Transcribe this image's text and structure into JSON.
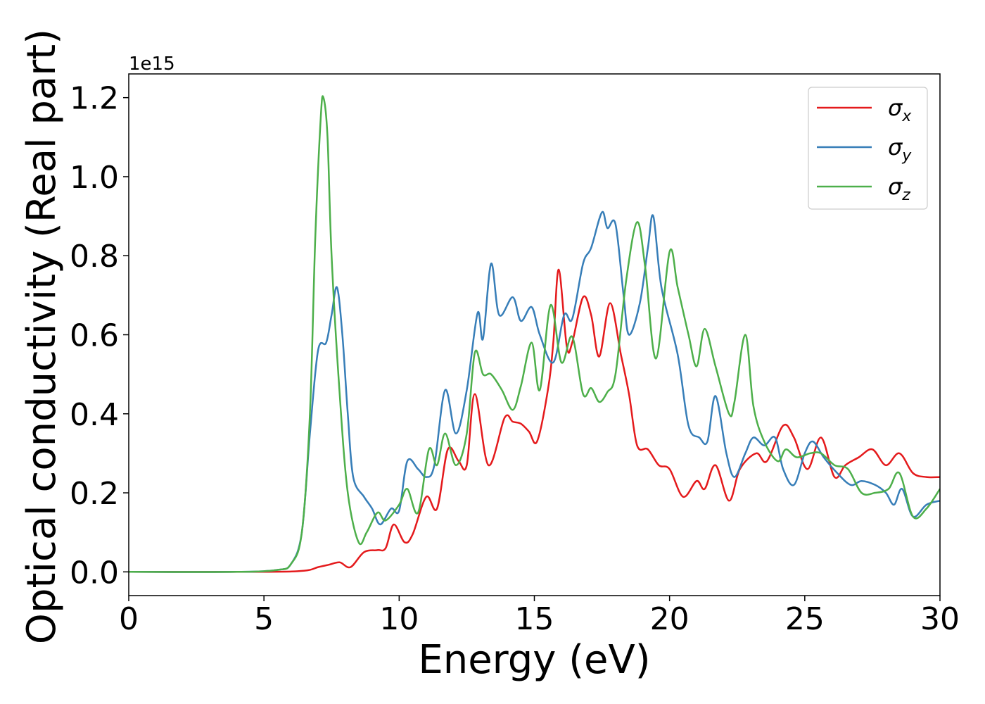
{
  "chart_data": {
    "type": "line",
    "xlabel": "Energy (eV)",
    "ylabel": "Optical conductivity (Real part)",
    "y_offset_text": "1e15",
    "xlim": [
      0,
      30
    ],
    "ylim": [
      -0.06,
      1.26
    ],
    "x_ticks": [
      0,
      5,
      10,
      15,
      20,
      25,
      30
    ],
    "x_tick_labels": [
      "0",
      "5",
      "10",
      "15",
      "20",
      "25",
      "30"
    ],
    "y_ticks": [
      0.0,
      0.2,
      0.4,
      0.6,
      0.8,
      1.0,
      1.2
    ],
    "y_tick_labels": [
      "0.0",
      "0.2",
      "0.4",
      "0.6",
      "0.8",
      "1.0",
      "1.2"
    ],
    "grid": false,
    "legend_position": "top-right",
    "series": [
      {
        "name": "σx",
        "symbol": "σ",
        "subscript": "x",
        "color": "#e41a1c",
        "points": [
          [
            0,
            0
          ],
          [
            5,
            0
          ],
          [
            6.5,
            0.003
          ],
          [
            7,
            0.012
          ],
          [
            7.4,
            0.018
          ],
          [
            7.8,
            0.024
          ],
          [
            8.2,
            0.012
          ],
          [
            8.7,
            0.05
          ],
          [
            9.2,
            0.055
          ],
          [
            9.5,
            0.06
          ],
          [
            9.8,
            0.12
          ],
          [
            10.2,
            0.075
          ],
          [
            10.5,
            0.095
          ],
          [
            11,
            0.19
          ],
          [
            11.4,
            0.16
          ],
          [
            11.8,
            0.31
          ],
          [
            12.2,
            0.28
          ],
          [
            12.5,
            0.27
          ],
          [
            12.8,
            0.45
          ],
          [
            13.3,
            0.27
          ],
          [
            13.9,
            0.39
          ],
          [
            14.2,
            0.38
          ],
          [
            14.5,
            0.375
          ],
          [
            14.8,
            0.355
          ],
          [
            15.1,
            0.33
          ],
          [
            15.5,
            0.46
          ],
          [
            15.7,
            0.58
          ],
          [
            15.9,
            0.765
          ],
          [
            16.2,
            0.57
          ],
          [
            16.4,
            0.58
          ],
          [
            16.8,
            0.695
          ],
          [
            17.1,
            0.65
          ],
          [
            17.4,
            0.545
          ],
          [
            17.8,
            0.68
          ],
          [
            18.2,
            0.55
          ],
          [
            18.5,
            0.45
          ],
          [
            18.8,
            0.32
          ],
          [
            19.2,
            0.31
          ],
          [
            19.6,
            0.27
          ],
          [
            20,
            0.26
          ],
          [
            20.5,
            0.19
          ],
          [
            21,
            0.23
          ],
          [
            21.3,
            0.21
          ],
          [
            21.7,
            0.27
          ],
          [
            22.2,
            0.18
          ],
          [
            22.6,
            0.26
          ],
          [
            23.2,
            0.3
          ],
          [
            23.6,
            0.28
          ],
          [
            24.2,
            0.37
          ],
          [
            24.6,
            0.34
          ],
          [
            25.1,
            0.26
          ],
          [
            25.6,
            0.34
          ],
          [
            26.1,
            0.24
          ],
          [
            26.5,
            0.27
          ],
          [
            27,
            0.29
          ],
          [
            27.5,
            0.31
          ],
          [
            28,
            0.27
          ],
          [
            28.5,
            0.3
          ],
          [
            29,
            0.25
          ],
          [
            29.5,
            0.24
          ],
          [
            30,
            0.24
          ]
        ]
      },
      {
        "name": "σy",
        "symbol": "σ",
        "subscript": "y",
        "color": "#377eb8",
        "points": [
          [
            0,
            0
          ],
          [
            4,
            0
          ],
          [
            5.5,
            0.005
          ],
          [
            6,
            0.02
          ],
          [
            6.4,
            0.1
          ],
          [
            6.7,
            0.35
          ],
          [
            7,
            0.56
          ],
          [
            7.3,
            0.58
          ],
          [
            7.5,
            0.65
          ],
          [
            7.7,
            0.72
          ],
          [
            7.9,
            0.6
          ],
          [
            8.1,
            0.4
          ],
          [
            8.3,
            0.24
          ],
          [
            8.7,
            0.19
          ],
          [
            9,
            0.16
          ],
          [
            9.3,
            0.12
          ],
          [
            9.7,
            0.16
          ],
          [
            10,
            0.155
          ],
          [
            10.3,
            0.28
          ],
          [
            10.7,
            0.26
          ],
          [
            11,
            0.24
          ],
          [
            11.3,
            0.27
          ],
          [
            11.7,
            0.46
          ],
          [
            12.1,
            0.35
          ],
          [
            12.5,
            0.46
          ],
          [
            12.9,
            0.655
          ],
          [
            13.1,
            0.59
          ],
          [
            13.4,
            0.78
          ],
          [
            13.7,
            0.65
          ],
          [
            14.2,
            0.695
          ],
          [
            14.5,
            0.635
          ],
          [
            14.9,
            0.67
          ],
          [
            15.2,
            0.6
          ],
          [
            15.7,
            0.53
          ],
          [
            16.1,
            0.65
          ],
          [
            16.4,
            0.64
          ],
          [
            16.8,
            0.78
          ],
          [
            17.1,
            0.82
          ],
          [
            17.5,
            0.91
          ],
          [
            17.7,
            0.87
          ],
          [
            18,
            0.88
          ],
          [
            18.3,
            0.7
          ],
          [
            18.5,
            0.6
          ],
          [
            18.9,
            0.68
          ],
          [
            19.2,
            0.82
          ],
          [
            19.4,
            0.9
          ],
          [
            19.7,
            0.72
          ],
          [
            20.3,
            0.55
          ],
          [
            20.7,
            0.37
          ],
          [
            21.1,
            0.34
          ],
          [
            21.4,
            0.33
          ],
          [
            21.7,
            0.445
          ],
          [
            22.1,
            0.3
          ],
          [
            22.4,
            0.24
          ],
          [
            22.8,
            0.3
          ],
          [
            23.1,
            0.34
          ],
          [
            23.5,
            0.32
          ],
          [
            23.9,
            0.34
          ],
          [
            24.2,
            0.26
          ],
          [
            24.6,
            0.22
          ],
          [
            25,
            0.3
          ],
          [
            25.3,
            0.33
          ],
          [
            25.7,
            0.29
          ],
          [
            26.2,
            0.25
          ],
          [
            26.7,
            0.22
          ],
          [
            27.1,
            0.23
          ],
          [
            27.6,
            0.22
          ],
          [
            28,
            0.2
          ],
          [
            28.3,
            0.17
          ],
          [
            28.6,
            0.21
          ],
          [
            29,
            0.14
          ],
          [
            29.5,
            0.17
          ],
          [
            30,
            0.18
          ]
        ]
      },
      {
        "name": "σz",
        "symbol": "σ",
        "subscript": "z",
        "color": "#4daf4a",
        "points": [
          [
            0,
            0
          ],
          [
            4,
            0
          ],
          [
            5.5,
            0.005
          ],
          [
            6,
            0.02
          ],
          [
            6.4,
            0.1
          ],
          [
            6.7,
            0.4
          ],
          [
            6.9,
            0.85
          ],
          [
            7.1,
            1.15
          ],
          [
            7.2,
            1.2
          ],
          [
            7.35,
            1.1
          ],
          [
            7.5,
            0.8
          ],
          [
            7.8,
            0.45
          ],
          [
            8.1,
            0.2
          ],
          [
            8.5,
            0.075
          ],
          [
            8.8,
            0.1
          ],
          [
            9.2,
            0.15
          ],
          [
            9.5,
            0.13
          ],
          [
            10,
            0.17
          ],
          [
            10.3,
            0.21
          ],
          [
            10.7,
            0.15
          ],
          [
            11.1,
            0.31
          ],
          [
            11.4,
            0.27
          ],
          [
            11.7,
            0.35
          ],
          [
            12.1,
            0.27
          ],
          [
            12.5,
            0.35
          ],
          [
            12.8,
            0.555
          ],
          [
            13.1,
            0.5
          ],
          [
            13.4,
            0.5
          ],
          [
            13.8,
            0.46
          ],
          [
            14.2,
            0.41
          ],
          [
            14.5,
            0.47
          ],
          [
            14.9,
            0.58
          ],
          [
            15.2,
            0.46
          ],
          [
            15.6,
            0.675
          ],
          [
            16,
            0.53
          ],
          [
            16.4,
            0.595
          ],
          [
            16.8,
            0.45
          ],
          [
            17.1,
            0.465
          ],
          [
            17.4,
            0.43
          ],
          [
            17.7,
            0.455
          ],
          [
            18,
            0.5
          ],
          [
            18.4,
            0.74
          ],
          [
            18.8,
            0.885
          ],
          [
            19.1,
            0.77
          ],
          [
            19.5,
            0.54
          ],
          [
            20,
            0.81
          ],
          [
            20.3,
            0.72
          ],
          [
            20.7,
            0.6
          ],
          [
            21,
            0.52
          ],
          [
            21.3,
            0.615
          ],
          [
            21.7,
            0.52
          ],
          [
            22.2,
            0.4
          ],
          [
            22.4,
            0.43
          ],
          [
            22.8,
            0.6
          ],
          [
            23.1,
            0.42
          ],
          [
            23.5,
            0.33
          ],
          [
            24,
            0.28
          ],
          [
            24.3,
            0.31
          ],
          [
            24.7,
            0.29
          ],
          [
            25.2,
            0.3
          ],
          [
            25.6,
            0.3
          ],
          [
            26.1,
            0.27
          ],
          [
            26.6,
            0.26
          ],
          [
            27.1,
            0.2
          ],
          [
            27.6,
            0.2
          ],
          [
            28.1,
            0.21
          ],
          [
            28.5,
            0.25
          ],
          [
            29,
            0.14
          ],
          [
            29.5,
            0.16
          ],
          [
            30,
            0.21
          ]
        ]
      }
    ]
  }
}
